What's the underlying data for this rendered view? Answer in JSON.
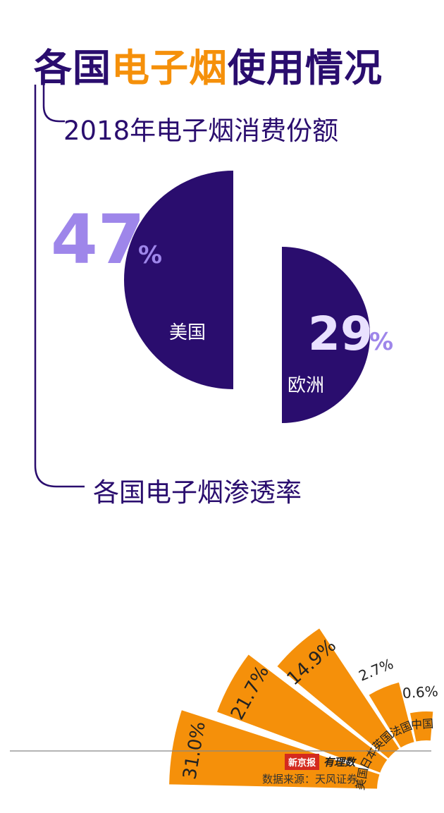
{
  "title": {
    "part1": "各国",
    "part2": "电子烟",
    "part3": "使用情况"
  },
  "section1": {
    "title": "2018年电子烟消费份额"
  },
  "section2": {
    "title": "各国电子烟渗透率"
  },
  "colors": {
    "primary": "#2a0d6e",
    "accent": "#f5900a",
    "percent_light": "#9e86ea",
    "logo_red": "#d42a1e"
  },
  "chart_data": [
    {
      "type": "pie",
      "title": "2018年电子烟消费份额",
      "unit": "%",
      "categories": [
        "美国",
        "欧洲"
      ],
      "values": [
        47,
        29
      ]
    },
    {
      "type": "pie",
      "title": "各国电子烟渗透率",
      "unit": "%",
      "categories": [
        "美国",
        "日本",
        "英国",
        "法国",
        "中国"
      ],
      "values": [
        31.0,
        21.7,
        14.9,
        2.7,
        0.6
      ],
      "value_labels": [
        "31.0%",
        "21.7%",
        "14.9%",
        "2.7%",
        "0.6%"
      ]
    }
  ],
  "footer": {
    "logo_text": "新京报",
    "logo_script": "有理数",
    "source": "数据来源：天风证券"
  }
}
